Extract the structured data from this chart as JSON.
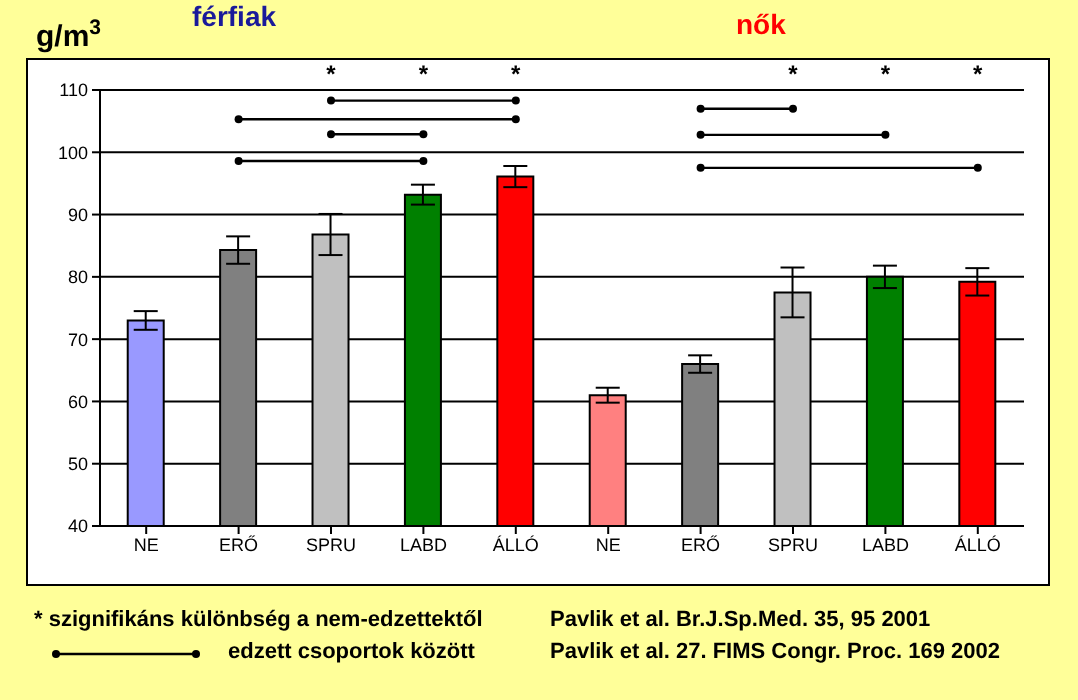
{
  "chart_data": {
    "type": "bar",
    "ylabel": "g/m$^{3}$",
    "categories": [
      "NE",
      "ERŐ",
      "SPRU",
      "LABD",
      "ÁLLÓ",
      "NE",
      "ERŐ",
      "SPRU",
      "LABD",
      "ÁLLÓ"
    ],
    "values": [
      73,
      84.3,
      86.8,
      93.2,
      96.1,
      61,
      66,
      77.5,
      80,
      79.2
    ],
    "errors": [
      1.5,
      2.2,
      3.3,
      1.6,
      1.7,
      1.2,
      1.4,
      4,
      1.8,
      2.2
    ],
    "colors": [
      "#9999ff",
      "#808080",
      "#c0c0c0",
      "#008000",
      "#ff0000",
      "#ff8080",
      "#808080",
      "#c0c0c0",
      "#008000",
      "#ff0000"
    ],
    "ylim": [
      40,
      110
    ],
    "yticks": [
      40,
      50,
      60,
      70,
      80,
      90,
      100,
      110
    ],
    "grid": "y",
    "annotations": [
      "férfiak",
      "nők",
      "* szignifikáns különbség  a nem-edzettektől",
      "edzett csoportok között",
      "Pavlik et al. Br.J.Sp.Med.  35, 95 2001",
      "Pavlik et al. 27. FIMS  Congr.  Proc. 169  2002",
      "*",
      "*",
      "*",
      "*",
      "*",
      "*"
    ]
  }
}
